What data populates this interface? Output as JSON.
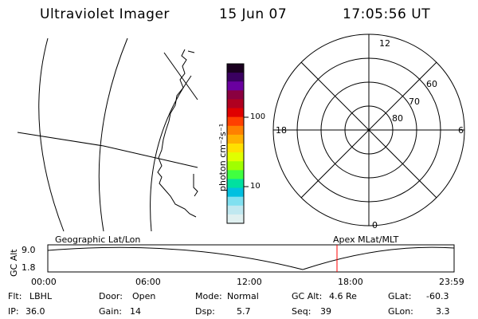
{
  "header": {
    "instrument": "Ultraviolet Imager",
    "date": "15 Jun 07",
    "time": "17:05:56 UT"
  },
  "colorbar": {
    "unit_label": "photon cm⁻²s⁻¹",
    "ticks": [
      "100",
      "10"
    ],
    "colors": [
      "#1a0020",
      "#3a0060",
      "#6a00a0",
      "#8a0040",
      "#b00020",
      "#e00000",
      "#ff4000",
      "#ff8000",
      "#ffb000",
      "#ffe000",
      "#e0ff00",
      "#a0ff00",
      "#40ff40",
      "#00e0a0",
      "#00c0e0",
      "#80e0f0",
      "#c0e8f0",
      "#e0f0f0"
    ]
  },
  "polar": {
    "labels": {
      "top": "12",
      "left": "18",
      "right": "6",
      "bottom": "0"
    },
    "rings": [
      "60",
      "70",
      "80"
    ]
  },
  "timeline": {
    "y_axis_label": "GC Alt",
    "y_max": "9.0",
    "y_min": "1.8",
    "left_label": "Geographic Lat/Lon",
    "right_label": "Apex MLat/MLT",
    "x_ticks": [
      "00:00",
      "06:00",
      "12:00",
      "18:00",
      "23:59"
    ],
    "marker_color": "#ff0000"
  },
  "footer": {
    "row1": [
      {
        "label": "Flt:",
        "value": "LBHL"
      },
      {
        "label": "Door:",
        "value": "Open"
      },
      {
        "label": "Mode:",
        "value": "Normal"
      },
      {
        "label": "GC Alt:",
        "value": "4.6 Re"
      },
      {
        "label": "GLat:",
        "value": "-60.3"
      }
    ],
    "row2": [
      {
        "label": "IP:",
        "value": "36.0"
      },
      {
        "label": "Gain:",
        "value": "14"
      },
      {
        "label": "Dsp:",
        "value": "5.7"
      },
      {
        "label": "Seq:",
        "value": "39"
      },
      {
        "label": "GLon:",
        "value": "3.3"
      }
    ]
  }
}
